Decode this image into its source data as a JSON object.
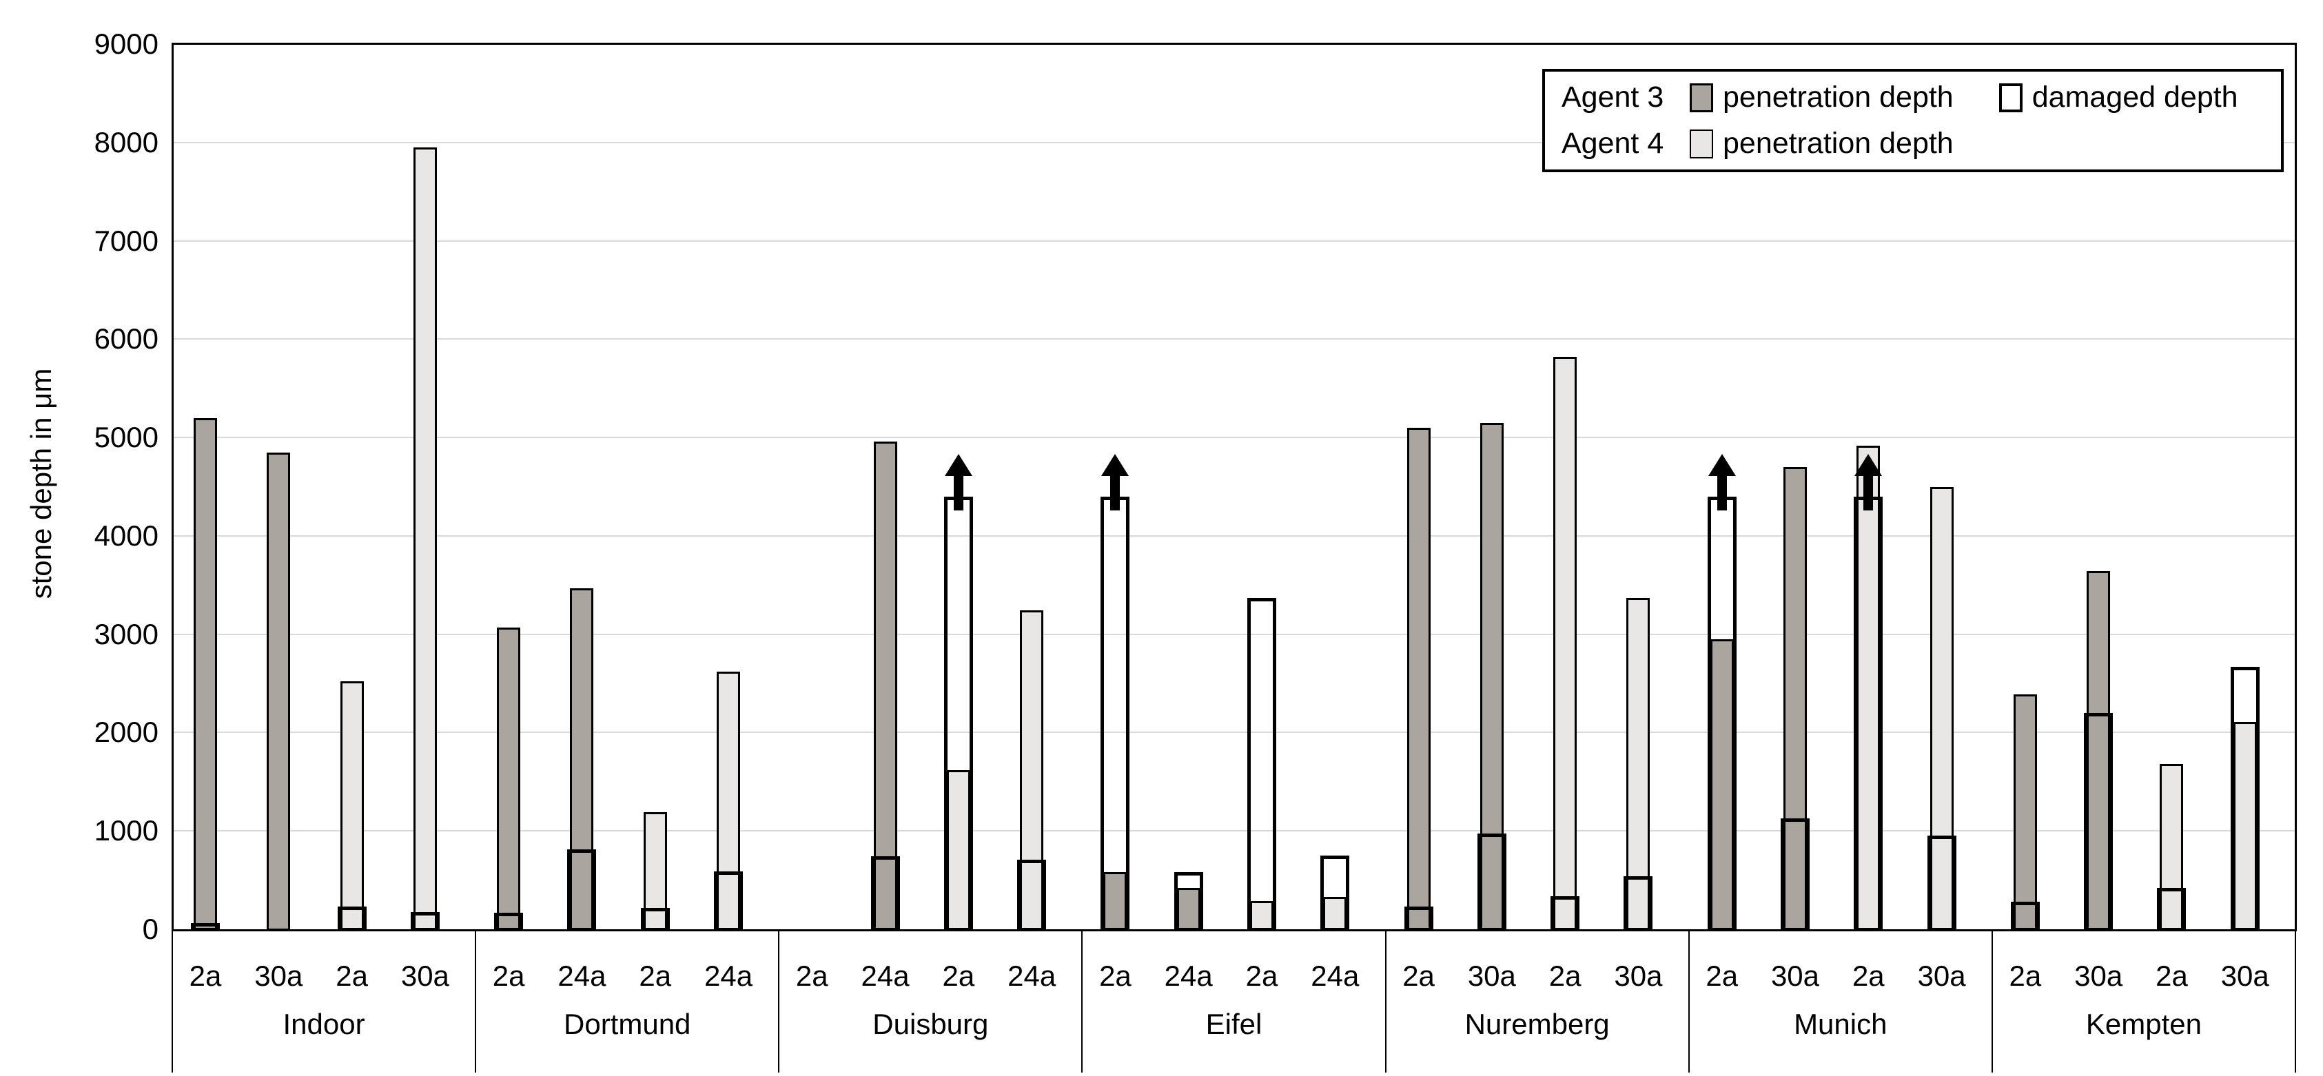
{
  "y_axis": {
    "title": "stone depth in μm",
    "tick_labels": [
      "9000",
      "8000",
      "7000",
      "6000",
      "5000",
      "4000",
      "3000",
      "2000",
      "1000",
      "0"
    ]
  },
  "legend": {
    "row1": {
      "agent": "Agent 3",
      "pen": "penetration depth",
      "dam": "damaged depth"
    },
    "row2": {
      "agent": "Agent 4",
      "pen": "penetration depth"
    }
  },
  "colors": {
    "agent3_fill": "#ABA5A0",
    "agent4_fill": "#E8E7E6",
    "damaged_fill": "#FFFFFF",
    "outline": "#000000",
    "gridline": "#D9D9D9"
  },
  "chart_data": {
    "type": "bar",
    "title": "",
    "xlabel": "",
    "ylabel": "stone depth in μm",
    "ylim": [
      0,
      9000
    ],
    "ytick_interval": 1000,
    "yticks": [
      0,
      1000,
      2000,
      3000,
      4000,
      5000,
      6000,
      7000,
      8000,
      9000
    ],
    "grid": true,
    "legend_position": "top-right",
    "series_legend": [
      {
        "agent": "Agent 3",
        "name": "penetration depth",
        "style": "filled-gray"
      },
      {
        "agent": "Agent 3",
        "name": "damaged depth",
        "style": "white-outline-box"
      },
      {
        "agent": "Agent 4",
        "name": "penetration depth",
        "style": "filled-lightgray"
      }
    ],
    "arrow_meaning": "black up-arrow drawn at top of damaged-depth box",
    "groups": [
      {
        "location": "Indoor",
        "bars": [
          {
            "label": "2a",
            "agent": "Agent 3",
            "penetration": 5200,
            "damaged": 60,
            "arrow": false
          },
          {
            "label": "30a",
            "agent": "Agent 3",
            "penetration": 4850,
            "damaged": null,
            "arrow": false
          },
          {
            "label": "2a",
            "agent": "Agent 4",
            "penetration": 2520,
            "damaged": 230,
            "arrow": false
          },
          {
            "label": "30a",
            "agent": "Agent 4",
            "penetration": 7950,
            "damaged": 175,
            "arrow": false
          }
        ]
      },
      {
        "location": "Dortmund",
        "bars": [
          {
            "label": "2a",
            "agent": "Agent 3",
            "penetration": 3070,
            "damaged": 165,
            "arrow": false
          },
          {
            "label": "24a",
            "agent": "Agent 3",
            "penetration": 3470,
            "damaged": 810,
            "arrow": false
          },
          {
            "label": "2a",
            "agent": "Agent 4",
            "penetration": 1190,
            "damaged": 215,
            "arrow": false
          },
          {
            "label": "24a",
            "agent": "Agent 4",
            "penetration": 2620,
            "damaged": 590,
            "arrow": false
          }
        ]
      },
      {
        "location": "Duisburg",
        "bars": [
          {
            "label": "2a",
            "agent": "Agent 3",
            "penetration": null,
            "damaged": null,
            "arrow": false
          },
          {
            "label": "24a",
            "agent": "Agent 3",
            "penetration": 4960,
            "damaged": 740,
            "arrow": false
          },
          {
            "label": "2a",
            "agent": "Agent 4",
            "penetration": 1620,
            "damaged": 4400,
            "arrow": true
          },
          {
            "label": "24a",
            "agent": "Agent 4",
            "penetration": 3240,
            "damaged": 710,
            "arrow": false
          }
        ]
      },
      {
        "location": "Eifel",
        "bars": [
          {
            "label": "2a",
            "agent": "Agent 3",
            "penetration": 580,
            "damaged": 4400,
            "arrow": true
          },
          {
            "label": "24a",
            "agent": "Agent 3",
            "penetration": 420,
            "damaged": 580,
            "arrow": false
          },
          {
            "label": "2a",
            "agent": "Agent 4",
            "penetration": 290,
            "damaged": 3370,
            "arrow": false
          },
          {
            "label": "24a",
            "agent": "Agent 4",
            "penetration": 330,
            "damaged": 750,
            "arrow": false
          }
        ]
      },
      {
        "location": "Nuremberg",
        "bars": [
          {
            "label": "2a",
            "agent": "Agent 3",
            "penetration": 5100,
            "damaged": 230,
            "arrow": false
          },
          {
            "label": "30a",
            "agent": "Agent 3",
            "penetration": 5150,
            "damaged": 975,
            "arrow": false
          },
          {
            "label": "2a",
            "agent": "Agent 4",
            "penetration": 5820,
            "damaged": 335,
            "arrow": false
          },
          {
            "label": "30a",
            "agent": "Agent 4",
            "penetration": 3370,
            "damaged": 540,
            "arrow": false
          }
        ]
      },
      {
        "location": "Munich",
        "bars": [
          {
            "label": "2a",
            "agent": "Agent 3",
            "penetration": 2950,
            "damaged": 4400,
            "arrow": true
          },
          {
            "label": "30a",
            "agent": "Agent 3",
            "penetration": 4700,
            "damaged": 1130,
            "arrow": false
          },
          {
            "label": "2a",
            "agent": "Agent 4",
            "penetration": 4920,
            "damaged": 4400,
            "arrow": true
          },
          {
            "label": "30a",
            "agent": "Agent 4",
            "penetration": 4500,
            "damaged": 950,
            "arrow": false
          }
        ]
      },
      {
        "location": "Kempten",
        "bars": [
          {
            "label": "2a",
            "agent": "Agent 3",
            "penetration": 2390,
            "damaged": 280,
            "arrow": false
          },
          {
            "label": "30a",
            "agent": "Agent 3",
            "penetration": 3640,
            "damaged": 2200,
            "arrow": false
          },
          {
            "label": "2a",
            "agent": "Agent 4",
            "penetration": 1680,
            "damaged": 420,
            "arrow": false
          },
          {
            "label": "30a",
            "agent": "Agent 4",
            "penetration": 2110,
            "damaged": 2670,
            "arrow": false
          }
        ]
      }
    ]
  }
}
